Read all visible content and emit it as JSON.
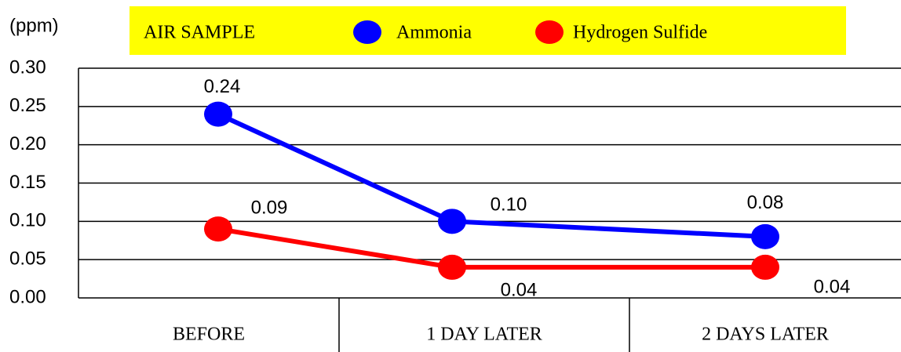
{
  "chart_data": {
    "type": "line",
    "unit_label": "(ppm)",
    "legend_title": "AIR SAMPLE",
    "categories": [
      "BEFORE",
      "1 DAY LATER",
      "2 DAYS LATER"
    ],
    "series": [
      {
        "name": "Ammonia",
        "color": "#0000ff",
        "values": [
          0.24,
          0.1,
          0.08
        ],
        "value_labels": [
          "0.24",
          "0.10",
          "0.08"
        ]
      },
      {
        "name": "Hydrogen Sulfide",
        "color": "#ff0000",
        "values": [
          0.09,
          0.04,
          0.04
        ],
        "value_labels": [
          "0.09",
          "0.04",
          "0.04"
        ]
      }
    ],
    "ylim": [
      0,
      0.3
    ],
    "yticks": [
      {
        "value": 0,
        "label": "0.00"
      },
      {
        "value": 0.05,
        "label": "0.05"
      },
      {
        "value": 0.1,
        "label": "0.10"
      },
      {
        "value": 0.15,
        "label": "0.15"
      },
      {
        "value": 0.2,
        "label": "0.20"
      },
      {
        "value": 0.25,
        "label": "0.25"
      },
      {
        "value": 0.3,
        "label": "0.30"
      }
    ],
    "grid": true,
    "legend_position": "top"
  }
}
